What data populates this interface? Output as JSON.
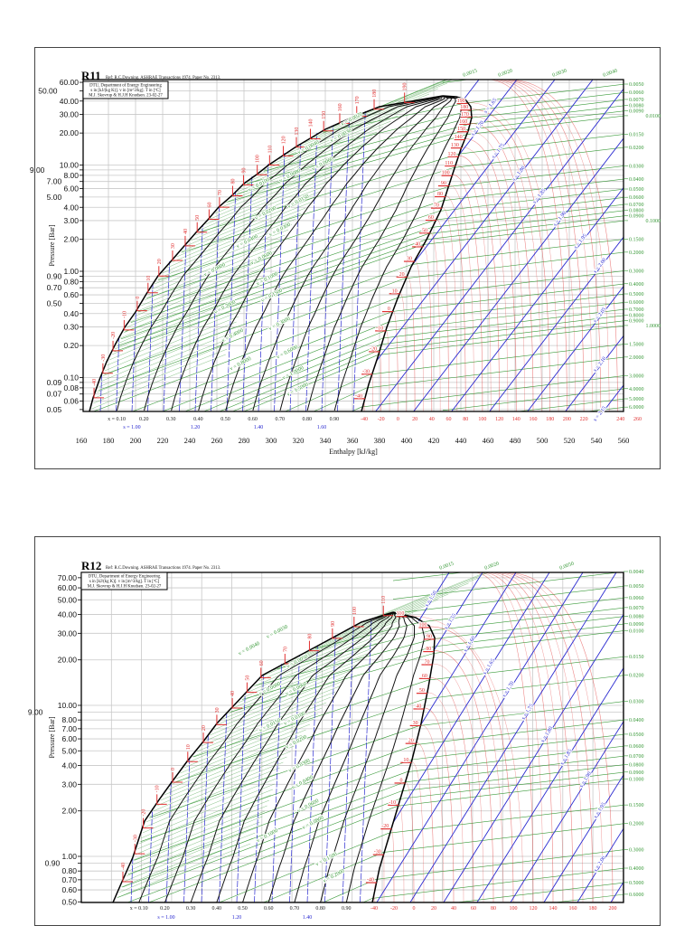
{
  "chart_data": [
    {
      "type": "line",
      "title": "R11",
      "reference": "Ref: R.C.Downing. ASHRAE Transactions 1974. Paper No. 2313.",
      "info": [
        "DTU, Department of Energy Engineering",
        "s in [kJ/(kg K)]. v in [m^3/kg]. T in [ºC]",
        "M.J. Skovrup & H.J.H Knudsen. 23-02-27"
      ],
      "ylabel": "Pressure [Bar]",
      "xlabel": "Enthalpy [kJ/kg]",
      "yscale": "log",
      "ylim": [
        0.05,
        60
      ],
      "xlim": [
        160,
        560
      ],
      "grid": true,
      "pressure_ticks": [
        "60.00",
        "50.00",
        "40.00",
        "30.00",
        "20.00",
        "10.00",
        "9.00",
        "8.00",
        "7.00",
        "6.00",
        "5.00",
        "4.00",
        "3.00",
        "2.00",
        "1.00",
        "0.90",
        "0.80",
        "0.70",
        "0.60",
        "0.50",
        "0.40",
        "0.30",
        "0.20",
        "0.10",
        "0.09",
        "0.08",
        "0.07",
        "0.06",
        "0.05"
      ],
      "enthalpy_ticks": [
        "160",
        "180",
        "200",
        "220",
        "240",
        "260",
        "280",
        "300",
        "320",
        "340",
        "360",
        "380",
        "400",
        "420",
        "440",
        "460",
        "480",
        "500",
        "520",
        "540",
        "560"
      ],
      "quality_labels": [
        "x = 0.10",
        "0.20",
        "0.30",
        "0.40",
        "0.50",
        "0.60",
        "0.70",
        "0.80",
        "0.90"
      ],
      "entropy_labels_bottom": [
        "s = 1.00",
        "1.20",
        "1.40",
        "1.60"
      ],
      "temperature_labels_bottom": [
        "-40",
        "-20",
        "0",
        "20",
        "40",
        "60",
        "80",
        "100",
        "120",
        "140",
        "160",
        "180",
        "200",
        "220",
        "240",
        "260"
      ],
      "sat_temps_liquid": [
        "-40",
        "-30",
        "-20",
        "-10",
        "0",
        "10",
        "20",
        "30",
        "40",
        "50",
        "60",
        "70",
        "80",
        "90",
        "100",
        "110",
        "120",
        "130",
        "140",
        "150",
        "160",
        "170",
        "180",
        "190"
      ],
      "sat_temps_vapor": [
        "-40",
        "-30",
        "-20",
        "-10",
        "0",
        "10",
        "20",
        "30",
        "40",
        "50",
        "60",
        "70",
        "80",
        "90",
        "100",
        "110",
        "120",
        "130",
        "140",
        "150",
        "160",
        "170",
        "180",
        "190"
      ],
      "isentrope_labels": [
        "s = 1.65",
        "s = 1.70",
        "s = 1.75",
        "s = 1.80",
        "s = 1.85",
        "s = 1.90",
        "s = 1.95",
        "s = 2.00",
        "s = 2.05",
        "s = 2.10",
        "s = 2.15"
      ],
      "isochore_labels_top": [
        "0.0015",
        "0.0020",
        "0.0030",
        "0.0040"
      ],
      "isochore_labels_right": [
        "0.0050",
        "0.0060",
        "0.0070",
        "0.0080",
        "0.0090",
        "0.0100",
        "0.0150",
        "0.0200",
        "0.0300",
        "0.0400",
        "0.0500",
        "0.0600",
        "0.0700",
        "0.0800",
        "0.0900",
        "0.1000",
        "0.1500",
        "0.2000",
        "0.3000",
        "0.4000",
        "0.5000",
        "0.6000",
        "0.7000",
        "0.8000",
        "0.9000",
        "1.0000",
        "1.5000",
        "2.0000",
        "3.0000",
        "4.0000",
        "5.0000",
        "6.0000"
      ],
      "isochore_labels_dome": [
        "v = 0.0020",
        "v = 0.0030",
        "v = 0.0040",
        "v = 0.0060",
        "v = 0.0080",
        "v = 0.0100",
        "v = 0.0150",
        "v = 0.0200",
        "v = 0.0300",
        "v = 0.0400",
        "v = 0.0600",
        "v = 0.0800",
        "v = 0.1000",
        "v = 0.1500",
        "v = 0.2000",
        "v = 0.3000",
        "v = 0.4000",
        "v = 0.6000",
        "v = 0.8000",
        "v = 1.0000",
        "v = 1.5000"
      ],
      "colors": {
        "saturation": "#000000",
        "quality": "#111111",
        "isentrope": "#2a2ad0",
        "isotherm": "#e03030",
        "isochore": "#3a9a3a",
        "grid": "#c8c8c8"
      }
    },
    {
      "type": "line",
      "title": "R12",
      "reference": "Ref: R.C.Downing. ASHRAE Transactions 1974. Paper No. 2313.",
      "info": [
        "DTU, Department of Energy Engineering",
        "s in [kJ/(kg K)]. v in [m^3/kg]. T in [ºC]",
        "M.J. Skovrup & H.J.H Knudsen. 23-02-27"
      ],
      "ylabel": "Pressure [Bar]",
      "yscale": "log",
      "ylim": [
        0.5,
        70
      ],
      "grid": true,
      "pressure_ticks": [
        "70.00",
        "60.00",
        "50.00",
        "40.00",
        "30.00",
        "20.00",
        "10.00",
        "9.00",
        "8.00",
        "7.00",
        "6.00",
        "5.00",
        "4.00",
        "3.00",
        "2.00",
        "1.00",
        "0.90",
        "0.80",
        "0.70",
        "0.60",
        "0.50"
      ],
      "quality_labels": [
        "x = 0.10",
        "0.20",
        "0.30",
        "0.40",
        "0.50",
        "0.60",
        "0.70",
        "0.80",
        "0.90"
      ],
      "entropy_labels_bottom": [
        "s = 1.00",
        "1.20",
        "1.40"
      ],
      "temperature_labels_bottom": [
        "-40",
        "-20",
        "0",
        "20",
        "40",
        "60",
        "80",
        "100",
        "120",
        "140",
        "160",
        "180",
        "200"
      ],
      "sat_temps_liquid": [
        "-40",
        "-30",
        "-20",
        "-10",
        "0",
        "10",
        "20",
        "30",
        "40",
        "50",
        "60",
        "70",
        "80",
        "90",
        "100",
        "110"
      ],
      "sat_temps_vapor": [
        "-40",
        "-30",
        "-20",
        "-10",
        "0",
        "10",
        "20",
        "30",
        "40",
        "50",
        "60",
        "70",
        "80",
        "90",
        "100",
        "110"
      ],
      "isentrope_labels": [
        "s = 1.50",
        "s = 1.55",
        "s = 1.60",
        "s = 1.65",
        "s = 1.70",
        "s = 1.75",
        "s = 1.80",
        "s = 1.85",
        "s = 1.90",
        "s = 1.95",
        "s = 2.00"
      ],
      "isochore_labels_top": [
        "0.0015",
        "0.0020",
        "0.0050"
      ],
      "isochore_labels_right": [
        "0.0040",
        "0.0050",
        "0.0060",
        "0.0070",
        "0.0080",
        "0.0090",
        "0.0100",
        "0.0150",
        "0.0200",
        "0.0300",
        "0.0400",
        "0.0500",
        "0.0600",
        "0.0700",
        "0.0800",
        "0.0900",
        "0.1000",
        "0.1500",
        "0.2000",
        "0.3000",
        "0.4000",
        "0.5000",
        "0.6000"
      ],
      "isochore_labels_dome": [
        "v = 0.0030",
        "v = 0.0040",
        "v = 0.0050",
        "v = 0.0060",
        "v = 0.0080",
        "v = 0.0100",
        "v = 0.0150",
        "v = 0.0200",
        "v = 0.0300",
        "v = 0.0400",
        "v = 0.0600",
        "v = 0.0800",
        "v = 0.1000",
        "v = 0.1500",
        "v = 0.2000"
      ],
      "colors": {
        "saturation": "#000000",
        "quality": "#111111",
        "isentrope": "#2a2ad0",
        "isotherm": "#e03030",
        "isochore": "#3a9a3a",
        "grid": "#c8c8c8"
      }
    }
  ]
}
